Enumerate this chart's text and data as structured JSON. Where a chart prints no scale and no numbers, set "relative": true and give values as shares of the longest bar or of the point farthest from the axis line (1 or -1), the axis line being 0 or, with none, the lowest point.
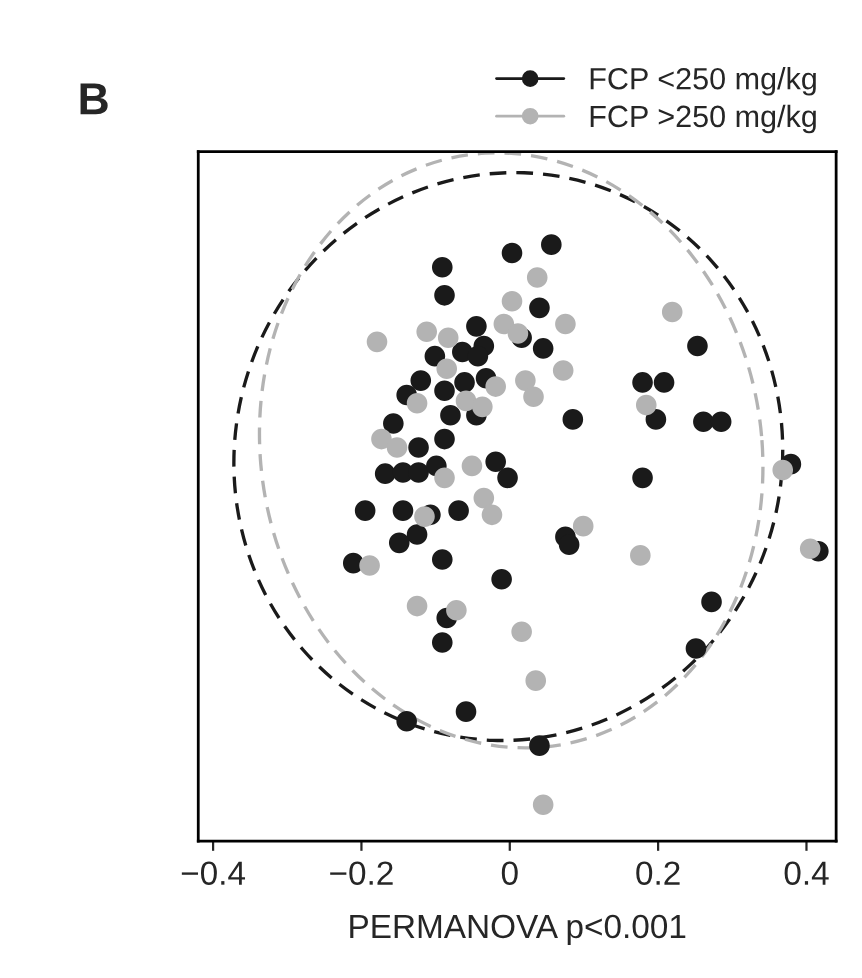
{
  "chart_data": {
    "type": "scatter",
    "relative": true,
    "xlabel": "PERMANOVA p<0.001",
    "annotations": [
      "B"
    ],
    "xlim": [
      -0.42,
      0.44
    ],
    "xticks": [
      {
        "value": -0.4,
        "label": "−0.4"
      },
      {
        "value": -0.2,
        "label": "−0.2"
      },
      0,
      0.2,
      0.4
    ],
    "tick_labels": "x",
    "legend": "top right",
    "marker": "circle",
    "grid": false,
    "series": [
      {
        "name": "FCP <250 mg/kg",
        "color": "#1a1a1a",
        "x": [
          0.003,
          0.056,
          -0.091,
          -0.088,
          0.04,
          -0.045,
          -0.035,
          0.016,
          0.045,
          -0.101,
          -0.064,
          -0.043,
          -0.12,
          -0.139,
          -0.088,
          -0.061,
          -0.032,
          -0.157,
          -0.08,
          -0.045,
          -0.123,
          -0.088,
          -0.019,
          -0.003,
          -0.168,
          -0.144,
          -0.123,
          -0.099,
          0.253,
          0.179,
          0.208,
          0.085,
          0.197,
          0.261,
          0.285,
          0.379,
          0.179,
          -0.195,
          -0.144,
          -0.107,
          -0.069,
          -0.125,
          -0.149,
          -0.211,
          -0.091,
          -0.011,
          -0.085,
          -0.091,
          -0.059,
          -0.139,
          0.04,
          0.075,
          0.08,
          0.416,
          0.272,
          0.251
        ],
        "values": [
          0.986,
          1,
          0.962,
          0.915,
          0.894,
          0.863,
          0.83,
          0.844,
          0.826,
          0.813,
          0.82,
          0.813,
          0.772,
          0.748,
          0.755,
          0.769,
          0.776,
          0.7,
          0.714,
          0.714,
          0.66,
          0.674,
          0.636,
          0.609,
          0.616,
          0.618,
          0.618,
          0.629,
          0.83,
          0.769,
          0.769,
          0.707,
          0.707,
          0.703,
          0.703,
          0.632,
          0.609,
          0.554,
          0.554,
          0.547,
          0.554,
          0.514,
          0.5,
          0.466,
          0.472,
          0.439,
          0.374,
          0.333,
          0.217,
          0.201,
          0.16,
          0.51,
          0.497,
          0.486,
          0.401,
          0.323
        ]
      },
      {
        "name": "FCP >250 mg/kg",
        "color": "#b3b3b3",
        "x": [
          -0.179,
          -0.112,
          -0.083,
          -0.085,
          -0.125,
          -0.059,
          -0.037,
          -0.019,
          -0.173,
          -0.152,
          -0.051,
          -0.088,
          -0.008,
          0.003,
          0.037,
          0.021,
          0.032,
          0.011,
          0.075,
          0.219,
          0.072,
          0.184,
          0.368,
          -0.035,
          -0.024,
          -0.115,
          -0.189,
          -0.125,
          -0.072,
          0.016,
          0.035,
          0.045,
          0.099,
          0.176,
          0.405
        ],
        "values": [
          0.837,
          0.854,
          0.844,
          0.792,
          0.734,
          0.738,
          0.728,
          0.762,
          0.674,
          0.66,
          0.629,
          0.609,
          0.867,
          0.905,
          0.945,
          0.772,
          0.745,
          0.851,
          0.867,
          0.887,
          0.789,
          0.731,
          0.622,
          0.575,
          0.547,
          0.544,
          0.462,
          0.394,
          0.387,
          0.351,
          0.269,
          0.061,
          0.528,
          0.479,
          0.49
        ]
      }
    ]
  }
}
